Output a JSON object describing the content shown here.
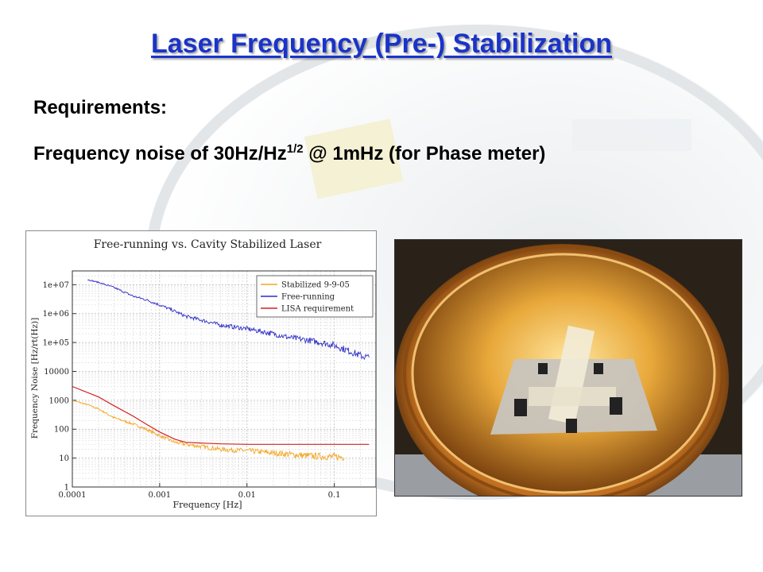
{
  "slide": {
    "title": "Laser Frequency (Pre-) Stabilization",
    "requirements_heading": "Requirements:",
    "requirement_prefix": "Frequency noise of 30Hz/Hz",
    "requirement_exponent": "1/2",
    "requirement_suffix": " @ 1mHz (for Phase meter)"
  },
  "colors": {
    "title": "#1a34c8",
    "stabilized": "#f5a623",
    "free_running": "#2e2ec8",
    "lisa": "#d42020"
  },
  "chart_data": {
    "type": "line",
    "title": "Free-running vs. Cavity Stabilized Laser",
    "xlabel": "Frequency [Hz]",
    "ylabel": "Frequency Noise [Hz/rt(Hz)]",
    "x_scale": "log",
    "y_scale": "log",
    "xlim": [
      0.0001,
      0.3
    ],
    "ylim": [
      1,
      30000000
    ],
    "x_ticks": [
      {
        "value": 0.0001,
        "label": "0.0001"
      },
      {
        "value": 0.001,
        "label": "0.001"
      },
      {
        "value": 0.01,
        "label": "0.01"
      },
      {
        "value": 0.1,
        "label": "0.1"
      }
    ],
    "y_ticks": [
      {
        "value": 1,
        "label": "1"
      },
      {
        "value": 10,
        "label": "10"
      },
      {
        "value": 100,
        "label": "100"
      },
      {
        "value": 1000,
        "label": "1000"
      },
      {
        "value": 10000,
        "label": "10000"
      },
      {
        "value": 100000,
        "label": "1e+05"
      },
      {
        "value": 1000000,
        "label": "1e+06"
      },
      {
        "value": 10000000,
        "label": "1e+07"
      }
    ],
    "grid": true,
    "legend_position": "top-right",
    "series": [
      {
        "name": "Stabilized 9-9-05",
        "color": "#f5a623",
        "noisy": true,
        "x": [
          0.0001,
          0.00015,
          0.0002,
          0.0003,
          0.0005,
          0.0007,
          0.001,
          0.0015,
          0.002,
          0.003,
          0.005,
          0.01,
          0.02,
          0.05,
          0.1,
          0.13
        ],
        "y": [
          1000,
          700,
          500,
          250,
          150,
          100,
          60,
          35,
          30,
          25,
          20,
          18,
          15,
          12,
          11,
          11
        ]
      },
      {
        "name": "Free-running",
        "color": "#2e2ec8",
        "noisy": true,
        "x": [
          0.00015,
          0.0002,
          0.0003,
          0.0005,
          0.0007,
          0.001,
          0.0015,
          0.002,
          0.003,
          0.005,
          0.01,
          0.02,
          0.03,
          0.05,
          0.07,
          0.1,
          0.15,
          0.2,
          0.25
        ],
        "y": [
          15000000,
          12000000,
          8000000,
          4000000,
          3000000,
          2000000,
          1200000,
          800000,
          600000,
          400000,
          300000,
          200000,
          150000,
          120000,
          100000,
          80000,
          50000,
          35000,
          30000
        ]
      },
      {
        "name": "LISA requirement",
        "color": "#d42020",
        "noisy": false,
        "x": [
          0.0001,
          0.0002,
          0.0003,
          0.0005,
          0.0007,
          0.001,
          0.0015,
          0.002,
          0.005,
          0.01,
          0.05,
          0.1,
          0.25
        ],
        "y": [
          3000,
          1300,
          650,
          280,
          150,
          80,
          45,
          35,
          31,
          30,
          30,
          30,
          30
        ]
      }
    ]
  }
}
